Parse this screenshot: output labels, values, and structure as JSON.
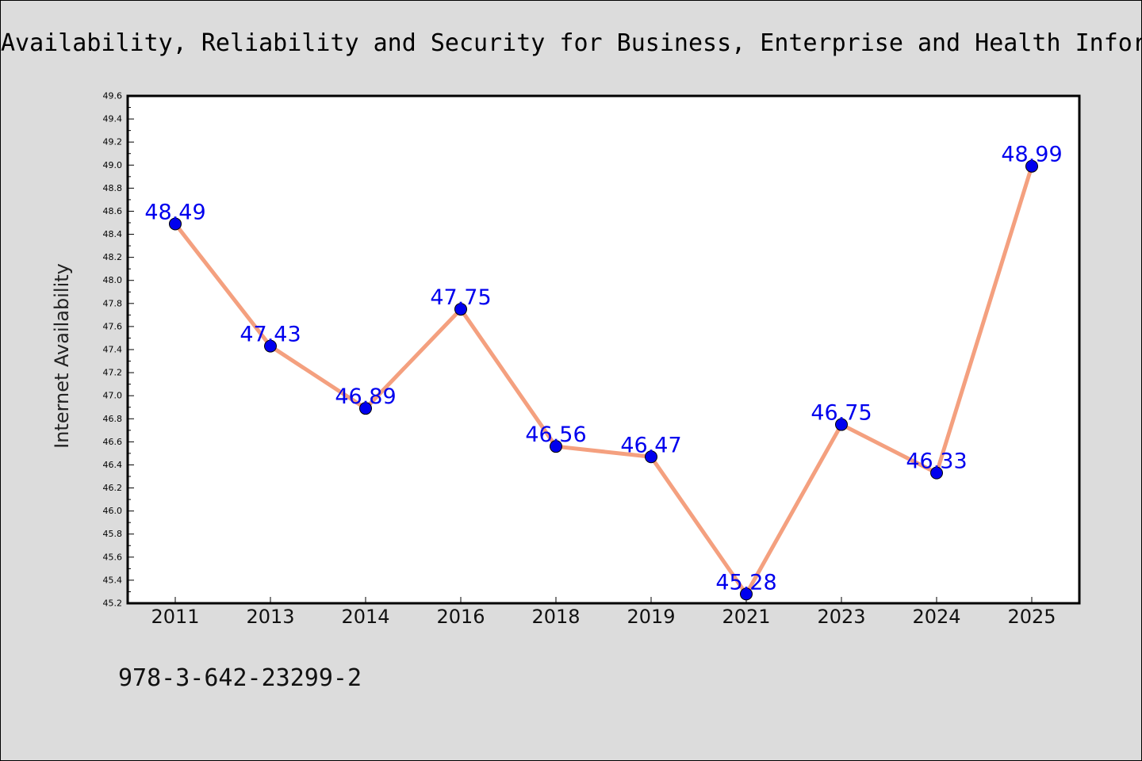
{
  "chart_data": {
    "type": "line",
    "title": "Availability, Reliability and Security for Business, Enterprise and Health Information Systems",
    "xlabel": "",
    "ylabel": "Internet Availability",
    "categories": [
      "2011",
      "2013",
      "2014",
      "2016",
      "2018",
      "2019",
      "2021",
      "2023",
      "2024",
      "2025"
    ],
    "series": [
      {
        "values": [
          48.49,
          47.43,
          46.89,
          47.75,
          46.56,
          46.47,
          45.28,
          46.75,
          46.33,
          48.99
        ],
        "data_labels": [
          "48.49",
          "47.43",
          "46.89",
          "47.75",
          "46.56",
          "46.47",
          "45.28",
          "46.75",
          "46.33",
          "48.99"
        ]
      }
    ],
    "ylim": [
      45.2,
      49.6
    ],
    "yticks": [
      "45.2",
      "45.4",
      "45.6",
      "45.8",
      "46.0",
      "46.2",
      "46.4",
      "46.6",
      "46.8",
      "47.0",
      "47.2",
      "47.4",
      "47.6",
      "47.8",
      "48.0",
      "48.2",
      "48.4",
      "48.6",
      "48.8",
      "49.0",
      "49.2",
      "49.4",
      "49.6"
    ],
    "grid": false,
    "colors": {
      "line": "#f4a07f",
      "marker": "#0000ee",
      "label": "#0000ee",
      "background": "#dcdcdc",
      "plot_background": "#ffffff"
    }
  },
  "footer": {
    "isbn": "978-3-642-23299-2"
  }
}
